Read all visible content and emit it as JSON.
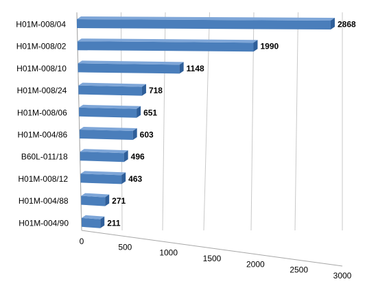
{
  "chart_data": {
    "type": "bar",
    "orientation": "horizontal",
    "style": "3d",
    "categories": [
      "H01M-008/04",
      "H01M-008/02",
      "H01M-008/10",
      "H01M-008/24",
      "H01M-008/06",
      "H01M-004/86",
      "B60L-011/18",
      "H01M-008/12",
      "H01M-004/88",
      "H01M-004/90"
    ],
    "values": [
      2868,
      1990,
      1148,
      718,
      651,
      603,
      496,
      463,
      271,
      211
    ],
    "data_labels": [
      "2868",
      "1990",
      "1148",
      "718",
      "651",
      "603",
      "496",
      "463",
      "271",
      "211"
    ],
    "xlim": [
      0,
      3000
    ],
    "x_ticks": [
      0,
      500,
      1000,
      1500,
      2000,
      2500,
      3000
    ],
    "x_tick_labels": [
      "0",
      "500",
      "1000",
      "1500",
      "2000",
      "2500",
      "3000"
    ],
    "grid": true,
    "legend": false,
    "colors": {
      "bar_front": "#4a7ebb",
      "bar_top": "#7ea6d8",
      "bar_side": "#2f5f9a",
      "grid": "#c8c8c8"
    }
  }
}
